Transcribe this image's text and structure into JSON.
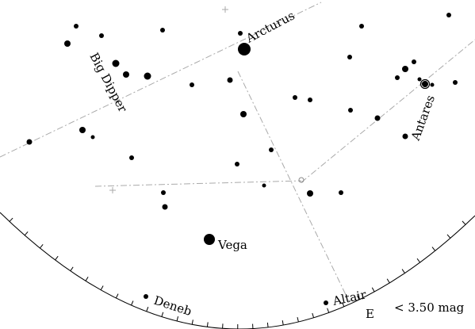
{
  "star_labels": {
    "arcturus": "Arcturus",
    "big_dipper": "Big Dipper",
    "antares": "Antares",
    "vega": "Vega",
    "deneb": "Deneb",
    "altair": "Altair"
  },
  "direction_label": "E",
  "magnitude_limit_label": "< 3.50 mag",
  "colors": {
    "ink": "#000000",
    "background": "#ffffff",
    "grid": "#aaaaaa"
  }
}
